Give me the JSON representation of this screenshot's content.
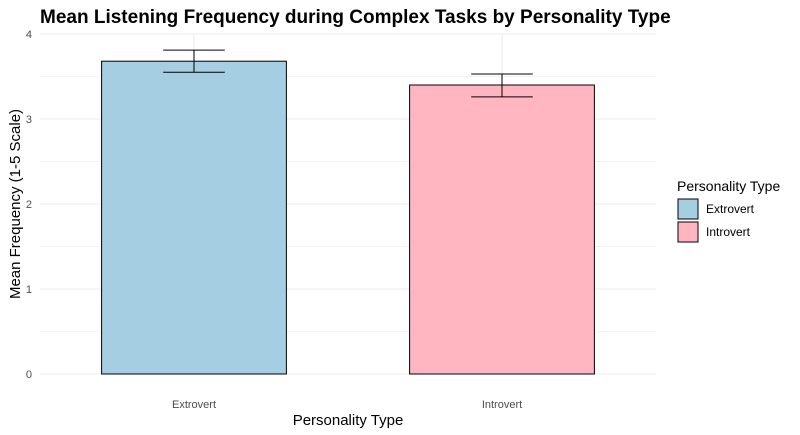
{
  "chart_data": {
    "type": "bar",
    "title": "Mean Listening Frequency during Complex Tasks by Personality Type",
    "xlabel": "Personality Type",
    "ylabel": "Mean Frequency (1-5 Scale)",
    "categories": [
      "Extrovert",
      "Introvert"
    ],
    "values": [
      3.68,
      3.4
    ],
    "error_low": [
      3.55,
      3.26
    ],
    "error_high": [
      3.81,
      3.53
    ],
    "colors": [
      "#a6cee3",
      "#ffb6c1"
    ],
    "ylim": [
      0,
      4
    ],
    "yticks": [
      0,
      1,
      2,
      3,
      4
    ],
    "grid": true,
    "legend": {
      "title": "Personality Type",
      "placement": "right",
      "entries": [
        "Extrovert",
        "Introvert"
      ]
    }
  }
}
